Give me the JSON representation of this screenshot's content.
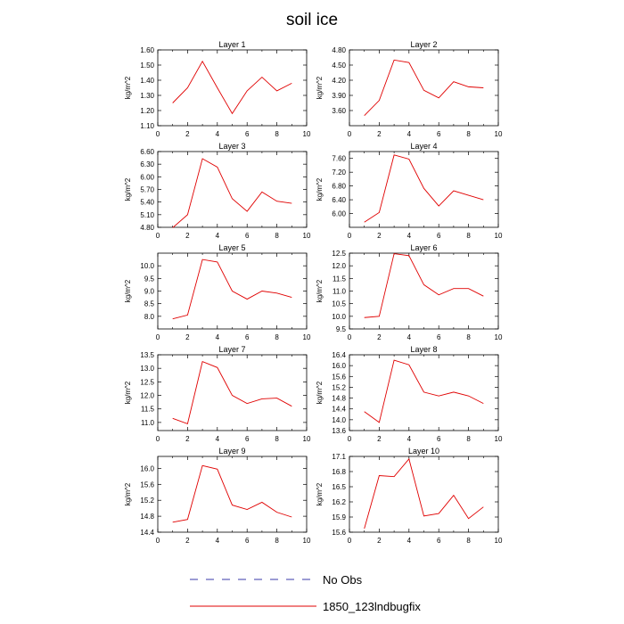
{
  "title": "soil ice",
  "legend": {
    "items": [
      {
        "label": "No Obs",
        "color": "#3a3aa8",
        "dash": true
      },
      {
        "label": "1850_123lndbugfix",
        "color": "#e00000",
        "dash": false
      }
    ]
  },
  "chart_data": [
    {
      "type": "line",
      "title": "Layer 1",
      "xlabel": "",
      "ylabel": "kg/m^2",
      "xlim": [
        0,
        10
      ],
      "ylim": [
        1.1,
        1.6
      ],
      "xticks": [
        0,
        2,
        4,
        6,
        8,
        10
      ],
      "xtick_labels": [
        "0",
        "2",
        "4",
        "6",
        "8",
        "10"
      ],
      "yticks": [
        1.1,
        1.2,
        1.3,
        1.4,
        1.5,
        1.6
      ],
      "ytick_labels": [
        "1.10",
        "1.20",
        "1.30",
        "1.40",
        "1.50",
        "1.60"
      ],
      "series": [
        {
          "color": "#e00000",
          "x": [
            1,
            2,
            3,
            4,
            5,
            6,
            7,
            8,
            9
          ],
          "y": [
            1.25,
            1.35,
            1.525,
            1.35,
            1.18,
            1.33,
            1.42,
            1.33,
            1.38
          ]
        }
      ]
    },
    {
      "type": "line",
      "title": "Layer 2",
      "xlabel": "",
      "ylabel": "kg/m^2",
      "xlim": [
        0,
        10
      ],
      "ylim": [
        3.3,
        4.8
      ],
      "xticks": [
        0,
        2,
        4,
        6,
        8,
        10
      ],
      "xtick_labels": [
        "0",
        "2",
        "4",
        "6",
        "8",
        "10"
      ],
      "yticks": [
        3.6,
        3.9,
        4.2,
        4.5,
        4.8
      ],
      "ytick_labels": [
        "3.60",
        "3.90",
        "4.20",
        "4.50",
        "4.80"
      ],
      "series": [
        {
          "color": "#e00000",
          "x": [
            1,
            2,
            3,
            4,
            5,
            6,
            7,
            8,
            9
          ],
          "y": [
            3.5,
            3.8,
            4.6,
            4.55,
            4.0,
            3.85,
            4.17,
            4.07,
            4.05
          ]
        }
      ]
    },
    {
      "type": "line",
      "title": "Layer 3",
      "xlabel": "",
      "ylabel": "kg/m^2",
      "xlim": [
        0,
        10
      ],
      "ylim": [
        4.8,
        6.6
      ],
      "xticks": [
        0,
        2,
        4,
        6,
        8,
        10
      ],
      "xtick_labels": [
        "0",
        "2",
        "4",
        "6",
        "8",
        "10"
      ],
      "yticks": [
        4.8,
        5.1,
        5.4,
        5.7,
        6.0,
        6.3,
        6.6
      ],
      "ytick_labels": [
        "4.80",
        "5.10",
        "5.40",
        "5.70",
        "6.00",
        "6.30",
        "6.60"
      ],
      "series": [
        {
          "color": "#e00000",
          "x": [
            1,
            2,
            3,
            4,
            5,
            6,
            7,
            8,
            9
          ],
          "y": [
            4.79,
            5.1,
            6.43,
            6.23,
            5.48,
            5.18,
            5.64,
            5.42,
            5.37
          ]
        }
      ]
    },
    {
      "type": "line",
      "title": "Layer 4",
      "xlabel": "",
      "ylabel": "kg/m^2",
      "xlim": [
        0,
        10
      ],
      "ylim": [
        5.6,
        7.8
      ],
      "xticks": [
        0,
        2,
        4,
        6,
        8,
        10
      ],
      "xtick_labels": [
        "0",
        "2",
        "4",
        "6",
        "8",
        "10"
      ],
      "yticks": [
        6.0,
        6.4,
        6.8,
        7.2,
        7.6
      ],
      "ytick_labels": [
        "6.00",
        "6.40",
        "6.80",
        "7.20",
        "7.60"
      ],
      "series": [
        {
          "color": "#e00000",
          "x": [
            1,
            2,
            3,
            4,
            5,
            6,
            7,
            8,
            9
          ],
          "y": [
            5.75,
            6.03,
            7.7,
            7.58,
            6.73,
            6.22,
            6.66,
            6.53,
            6.4
          ]
        }
      ]
    },
    {
      "type": "line",
      "title": "Layer 5",
      "xlabel": "",
      "ylabel": "kg/m^2",
      "xlim": [
        0,
        10
      ],
      "ylim": [
        7.5,
        10.5
      ],
      "xticks": [
        0,
        2,
        4,
        6,
        8,
        10
      ],
      "xtick_labels": [
        "0",
        "2",
        "4",
        "6",
        "8",
        "10"
      ],
      "yticks": [
        8.0,
        8.5,
        9.0,
        9.5,
        10.0
      ],
      "ytick_labels": [
        "8.0",
        "8.5",
        "9.0",
        "9.5",
        "10.0"
      ],
      "series": [
        {
          "color": "#e00000",
          "x": [
            1,
            2,
            3,
            4,
            5,
            6,
            7,
            8,
            9
          ],
          "y": [
            7.9,
            8.05,
            10.25,
            10.15,
            9.0,
            8.68,
            9.0,
            8.92,
            8.75
          ]
        }
      ]
    },
    {
      "type": "line",
      "title": "Layer 6",
      "xlabel": "",
      "ylabel": "kg/m^2",
      "xlim": [
        0,
        10
      ],
      "ylim": [
        9.5,
        12.5
      ],
      "xticks": [
        0,
        2,
        4,
        6,
        8,
        10
      ],
      "xtick_labels": [
        "0",
        "2",
        "4",
        "6",
        "8",
        "10"
      ],
      "yticks": [
        9.5,
        10.0,
        10.5,
        11.0,
        11.5,
        12.0,
        12.5
      ],
      "ytick_labels": [
        "9.5",
        "10.0",
        "10.5",
        "11.0",
        "11.5",
        "12.0",
        "12.5"
      ],
      "series": [
        {
          "color": "#e00000",
          "x": [
            1,
            2,
            3,
            4,
            5,
            6,
            7,
            8,
            9
          ],
          "y": [
            9.95,
            10.0,
            12.48,
            12.4,
            11.25,
            10.85,
            11.1,
            11.1,
            10.8
          ]
        }
      ]
    },
    {
      "type": "line",
      "title": "Layer 7",
      "xlabel": "",
      "ylabel": "kg/m^2",
      "xlim": [
        0,
        10
      ],
      "ylim": [
        10.7,
        13.5
      ],
      "xticks": [
        0,
        2,
        4,
        6,
        8,
        10
      ],
      "xtick_labels": [
        "0",
        "2",
        "4",
        "6",
        "8",
        "10"
      ],
      "yticks": [
        11.0,
        11.5,
        12.0,
        12.5,
        13.0,
        13.5
      ],
      "ytick_labels": [
        "11.0",
        "11.5",
        "12.0",
        "12.5",
        "13.0",
        "13.5"
      ],
      "series": [
        {
          "color": "#e00000",
          "x": [
            1,
            2,
            3,
            4,
            5,
            6,
            7,
            8,
            9
          ],
          "y": [
            11.15,
            10.95,
            13.25,
            13.03,
            12.0,
            11.7,
            11.87,
            11.9,
            11.6
          ]
        }
      ]
    },
    {
      "type": "line",
      "title": "Layer 8",
      "xlabel": "",
      "ylabel": "kg/m^2",
      "xlim": [
        0,
        10
      ],
      "ylim": [
        13.6,
        16.4
      ],
      "xticks": [
        0,
        2,
        4,
        6,
        8,
        10
      ],
      "xtick_labels": [
        "0",
        "2",
        "4",
        "6",
        "8",
        "10"
      ],
      "yticks": [
        13.6,
        14.0,
        14.4,
        14.8,
        15.2,
        15.6,
        16.0,
        16.4
      ],
      "ytick_labels": [
        "13.6",
        "14.0",
        "14.4",
        "14.8",
        "15.2",
        "15.6",
        "16.0",
        "16.4"
      ],
      "series": [
        {
          "color": "#e00000",
          "x": [
            1,
            2,
            3,
            4,
            5,
            6,
            7,
            8,
            9
          ],
          "y": [
            14.3,
            13.9,
            16.2,
            16.03,
            15.02,
            14.88,
            15.02,
            14.88,
            14.6
          ]
        }
      ]
    },
    {
      "type": "line",
      "title": "Layer 9",
      "xlabel": "",
      "ylabel": "kg/m^2",
      "xlim": [
        0,
        10
      ],
      "ylim": [
        14.4,
        16.3
      ],
      "xticks": [
        0,
        2,
        4,
        6,
        8,
        10
      ],
      "xtick_labels": [
        "0",
        "2",
        "4",
        "6",
        "8",
        "10"
      ],
      "yticks": [
        14.4,
        14.8,
        15.2,
        15.6,
        16.0
      ],
      "ytick_labels": [
        "14.4",
        "14.8",
        "15.2",
        "15.6",
        "16.0"
      ],
      "series": [
        {
          "color": "#e00000",
          "x": [
            1,
            2,
            3,
            4,
            5,
            6,
            7,
            8,
            9
          ],
          "y": [
            14.65,
            14.72,
            16.07,
            15.98,
            15.08,
            14.97,
            15.15,
            14.9,
            14.78
          ]
        }
      ]
    },
    {
      "type": "line",
      "title": "Layer 10",
      "xlabel": "",
      "ylabel": "kg/m^2",
      "xlim": [
        0,
        10
      ],
      "ylim": [
        15.6,
        17.1
      ],
      "xticks": [
        0,
        2,
        4,
        6,
        8,
        10
      ],
      "xtick_labels": [
        "0",
        "2",
        "4",
        "6",
        "8",
        "10"
      ],
      "yticks": [
        15.6,
        15.9,
        16.2,
        16.5,
        16.8,
        17.1
      ],
      "ytick_labels": [
        "15.6",
        "15.9",
        "16.2",
        "16.5",
        "16.8",
        "17.1"
      ],
      "series": [
        {
          "color": "#e00000",
          "x": [
            1,
            2,
            3,
            4,
            5,
            6,
            7,
            8,
            9
          ],
          "y": [
            15.67,
            16.72,
            16.7,
            17.05,
            15.92,
            15.97,
            16.33,
            15.87,
            16.1
          ]
        }
      ]
    }
  ]
}
